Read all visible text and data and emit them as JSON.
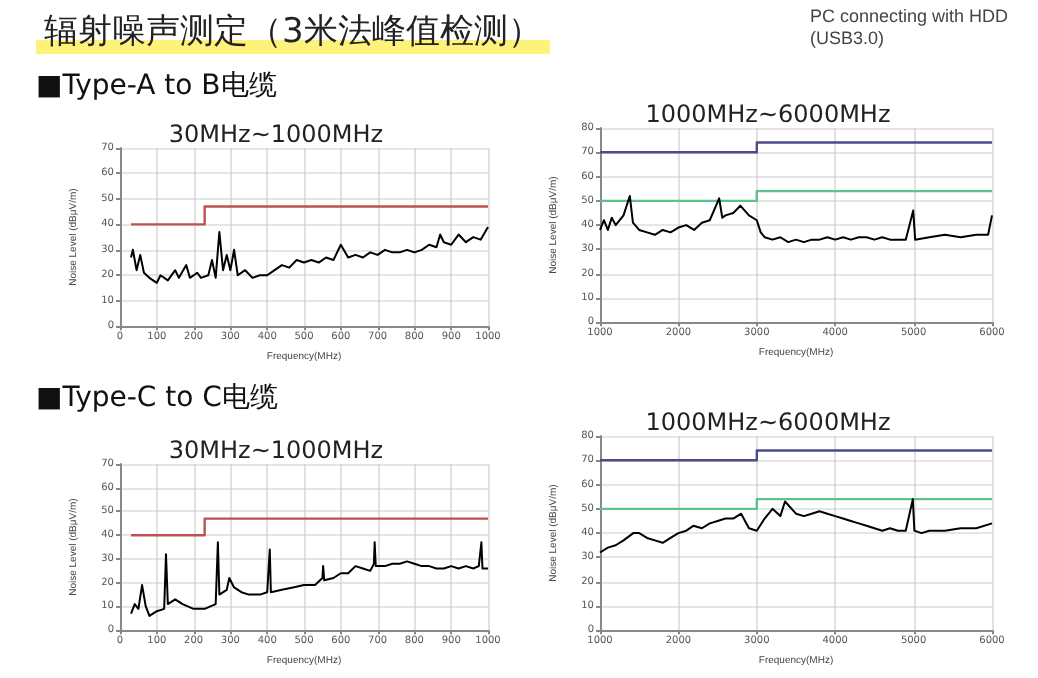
{
  "chart_data": [
    {
      "type": "line",
      "title": "30MHz~1000MHz",
      "xlabel": "Frequency(MHz)",
      "ylabel": "Noise Level (dBμV/m)",
      "annotations": [
        "辐射噪声测定（3米法峰值检测）",
        "PC connecting with HDD\n(USB3.0)",
        "■Type-A to B电缆"
      ],
      "xlim": [
        0,
        1000
      ],
      "xticks": [
        0,
        100,
        200,
        300,
        400,
        500,
        600,
        700,
        800,
        900,
        1000
      ],
      "ylim": [
        0,
        70
      ],
      "yticks": [
        0,
        10,
        20,
        30,
        40,
        50,
        60,
        70
      ],
      "grid": true,
      "marker": "none",
      "series": [
        {
          "type": "step",
          "color": "#c0504d",
          "x": [
            30,
            230,
            1000
          ],
          "values": [
            40,
            47,
            47
          ]
        },
        {
          "color": "#000000",
          "x": [
            30,
            35,
            45,
            55,
            65,
            80,
            100,
            110,
            130,
            150,
            160,
            180,
            190,
            210,
            220,
            240,
            250,
            260,
            270,
            280,
            290,
            300,
            310,
            320,
            340,
            360,
            380,
            400,
            420,
            440,
            460,
            480,
            500,
            520,
            540,
            560,
            580,
            600,
            620,
            640,
            660,
            680,
            700,
            720,
            740,
            760,
            780,
            800,
            820,
            840,
            860,
            870,
            880,
            900,
            920,
            940,
            960,
            980,
            1000
          ],
          "values": [
            27,
            30,
            22,
            28,
            21,
            19,
            17,
            20,
            18,
            22,
            19,
            24,
            19,
            21,
            19,
            20,
            26,
            19,
            37,
            22,
            28,
            22,
            30,
            20,
            22,
            19,
            20,
            20,
            22,
            24,
            23,
            26,
            25,
            26,
            25,
            27,
            26,
            32,
            27,
            28,
            27,
            29,
            28,
            30,
            29,
            29,
            30,
            29,
            30,
            32,
            31,
            36,
            33,
            32,
            36,
            33,
            35,
            34,
            39
          ]
        }
      ]
    },
    {
      "type": "line",
      "title": "1000MHz~6000MHz",
      "xlabel": "Frequency(MHz)",
      "ylabel": "Noise Level (dBμV/m)",
      "xlim": [
        1000,
        6000
      ],
      "xticks": [
        1000,
        2000,
        3000,
        4000,
        5000,
        6000
      ],
      "ylim": [
        0,
        80
      ],
      "yticks": [
        0,
        10,
        20,
        30,
        40,
        50,
        60,
        70,
        80
      ],
      "grid": true,
      "marker": "none",
      "series": [
        {
          "type": "step",
          "color": "#4b4c8c",
          "x": [
            1000,
            3000,
            6000
          ],
          "values": [
            70,
            74,
            74
          ]
        },
        {
          "type": "step",
          "color": "#5fbf8f",
          "x": [
            1000,
            3000,
            6000
          ],
          "values": [
            50,
            54,
            54
          ]
        },
        {
          "color": "#000000",
          "x": [
            1000,
            1050,
            1100,
            1150,
            1200,
            1300,
            1380,
            1420,
            1500,
            1600,
            1700,
            1800,
            1900,
            2000,
            2100,
            2200,
            2300,
            2400,
            2520,
            2560,
            2600,
            2700,
            2790,
            2900,
            3000,
            3050,
            3100,
            3200,
            3300,
            3400,
            3500,
            3600,
            3700,
            3800,
            3900,
            4000,
            4100,
            4200,
            4300,
            4400,
            4500,
            4600,
            4700,
            4800,
            4900,
            4995,
            5020,
            5200,
            5400,
            5600,
            5800,
            5950,
            6000
          ],
          "values": [
            38,
            42,
            38,
            43,
            40,
            44,
            52,
            41,
            38,
            37,
            36,
            38,
            37,
            39,
            40,
            38,
            41,
            42,
            51,
            43,
            44,
            45,
            48,
            44,
            42,
            37,
            35,
            34,
            35,
            33,
            34,
            33,
            34,
            34,
            35,
            34,
            35,
            34,
            35,
            35,
            34,
            35,
            34,
            34,
            34,
            46,
            34,
            35,
            36,
            35,
            36,
            36,
            44
          ]
        }
      ]
    },
    {
      "type": "line",
      "title": "30MHz~1000MHz",
      "xlabel": "Frequency(MHz)",
      "ylabel": "Noise Level (dBμV/m)",
      "annotations": [
        "■Type-C to C电缆"
      ],
      "xlim": [
        0,
        1000
      ],
      "xticks": [
        0,
        100,
        200,
        300,
        400,
        500,
        600,
        700,
        800,
        900,
        1000
      ],
      "ylim": [
        0,
        70
      ],
      "yticks": [
        0,
        10,
        20,
        30,
        40,
        50,
        60,
        70
      ],
      "grid": true,
      "marker": "none",
      "series": [
        {
          "type": "step",
          "color": "#c0504d",
          "x": [
            30,
            230,
            1000
          ],
          "values": [
            40,
            47,
            47
          ]
        },
        {
          "color": "#000000",
          "x": [
            30,
            40,
            50,
            60,
            70,
            80,
            100,
            120,
            125,
            130,
            150,
            170,
            200,
            230,
            260,
            266,
            270,
            290,
            297,
            310,
            330,
            350,
            380,
            400,
            407,
            410,
            440,
            470,
            500,
            530,
            550,
            552,
            555,
            580,
            600,
            620,
            640,
            660,
            680,
            690,
            692,
            695,
            720,
            740,
            760,
            780,
            800,
            820,
            840,
            860,
            880,
            900,
            920,
            940,
            960,
            975,
            982,
            985,
            1000
          ],
          "values": [
            7,
            11,
            9,
            19,
            10,
            6,
            8,
            9,
            32,
            11,
            13,
            11,
            9,
            9,
            11,
            37,
            15,
            17,
            22,
            18,
            16,
            15,
            15,
            16,
            34,
            16,
            17,
            18,
            19,
            19,
            22,
            27,
            21,
            22,
            24,
            24,
            27,
            26,
            25,
            28,
            37,
            27,
            27,
            28,
            28,
            29,
            28,
            27,
            27,
            26,
            26,
            27,
            26,
            27,
            26,
            27,
            37,
            26,
            26
          ]
        }
      ]
    },
    {
      "type": "line",
      "title": "1000MHz~6000MHz",
      "xlabel": "Frequency(MHz)",
      "ylabel": "Noise Level (dBμV/m)",
      "xlim": [
        1000,
        6000
      ],
      "xticks": [
        1000,
        2000,
        3000,
        4000,
        5000,
        6000
      ],
      "ylim": [
        0,
        80
      ],
      "yticks": [
        0,
        10,
        20,
        30,
        40,
        50,
        60,
        70,
        80
      ],
      "grid": true,
      "marker": "none",
      "series": [
        {
          "type": "step",
          "color": "#4b4c8c",
          "x": [
            1000,
            3000,
            6000
          ],
          "values": [
            70,
            74,
            74
          ]
        },
        {
          "type": "step",
          "color": "#5fbf8f",
          "x": [
            1000,
            3000,
            6000
          ],
          "values": [
            50,
            54,
            54
          ]
        },
        {
          "color": "#000000",
          "x": [
            1000,
            1100,
            1200,
            1300,
            1425,
            1500,
            1600,
            1700,
            1800,
            1900,
            2000,
            2100,
            2190,
            2300,
            2400,
            2500,
            2600,
            2700,
            2800,
            2900,
            3000,
            3100,
            3200,
            3300,
            3360,
            3500,
            3600,
            3700,
            3800,
            3900,
            4000,
            4100,
            4200,
            4300,
            4400,
            4500,
            4600,
            4700,
            4800,
            4900,
            4990,
            5010,
            5100,
            5200,
            5400,
            5600,
            5800,
            6000
          ],
          "values": [
            32,
            34,
            35,
            37,
            40,
            40,
            38,
            37,
            36,
            38,
            40,
            41,
            43,
            42,
            44,
            45,
            46,
            46,
            48,
            42,
            41,
            46,
            50,
            47,
            53,
            48,
            47,
            48,
            49,
            48,
            47,
            46,
            45,
            44,
            43,
            42,
            41,
            42,
            41,
            41,
            54,
            41,
            40,
            41,
            41,
            42,
            42,
            44
          ]
        }
      ]
    }
  ]
}
